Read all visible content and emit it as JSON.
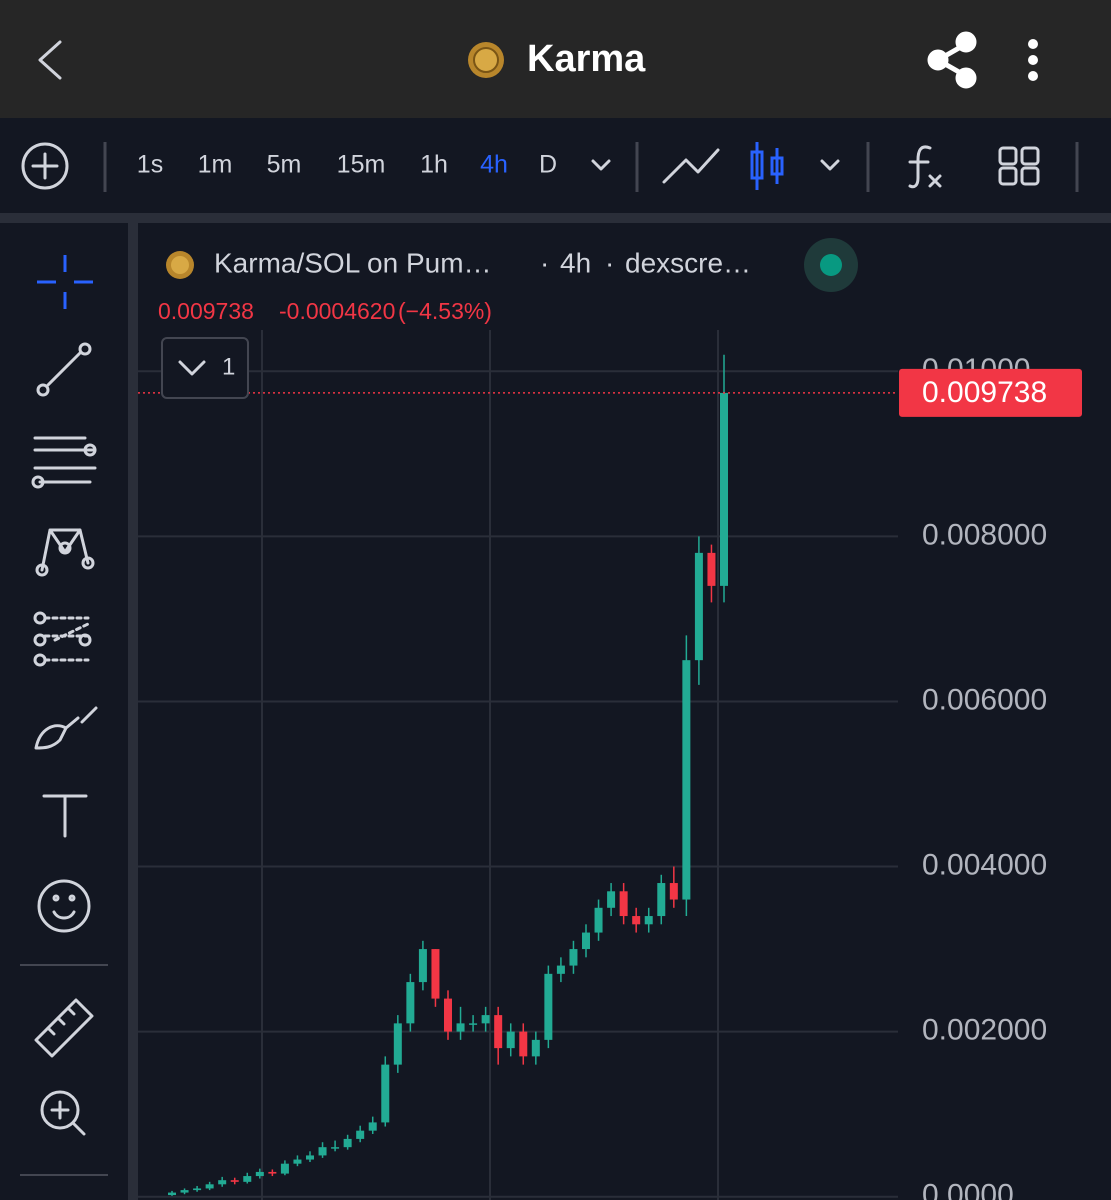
{
  "header": {
    "title": "Karma"
  },
  "toolbar": {
    "intervals": [
      "1s",
      "1m",
      "5m",
      "15m",
      "1h",
      "4h",
      "D"
    ],
    "active": "4h"
  },
  "chart_data": {
    "type": "candlestick",
    "symbol": "Karma/SOL on Pum…",
    "interval": "4h",
    "source": "dexscre…",
    "last_price": 0.009738,
    "price_change": {
      "value": -0.000462,
      "label": "-0.0004620"
    },
    "percent_change": {
      "value": -4.53,
      "label": "(−4.53%)"
    },
    "indicator_count": 1,
    "up_color": "#22ab94",
    "down_color": "#f23645",
    "categories": [
      null,
      null,
      null,
      null,
      null,
      null,
      null,
      null,
      null,
      null,
      null,
      null,
      null,
      null,
      null,
      null,
      null,
      null,
      null,
      null,
      null,
      null,
      null,
      null,
      null,
      null,
      null,
      null,
      null,
      null,
      null,
      null,
      null,
      null,
      null,
      null,
      null,
      null,
      null,
      null,
      null,
      null,
      null,
      null,
      null
    ],
    "open": [
      2e-05,
      5e-05,
      8e-05,
      0.0001,
      0.00015,
      0.0002,
      0.00018,
      0.00025,
      0.0003,
      0.00028,
      0.0004,
      0.00045,
      0.0005,
      0.0006,
      0.0006,
      0.0007,
      0.0008,
      0.0009,
      0.0016,
      0.0021,
      0.0026,
      0.003,
      0.0024,
      0.002,
      0.0021,
      0.0021,
      0.0022,
      0.0018,
      0.002,
      0.0017,
      0.0019,
      0.0027,
      0.0028,
      0.003,
      0.0032,
      0.0035,
      0.0037,
      0.0034,
      0.0033,
      0.0034,
      0.0038,
      0.0036,
      0.0065,
      0.0078,
      0.0074
    ],
    "high": [
      7e-05,
      0.0001,
      0.00013,
      0.00018,
      0.00024,
      0.00023,
      0.00029,
      0.00034,
      0.00033,
      0.00044,
      0.0005,
      0.00055,
      0.00066,
      0.00068,
      0.00075,
      0.00086,
      0.00097,
      0.0017,
      0.0022,
      0.0027,
      0.0031,
      0.003,
      0.0025,
      0.0023,
      0.0022,
      0.0023,
      0.0023,
      0.0021,
      0.0021,
      0.002,
      0.0028,
      0.0029,
      0.0031,
      0.0033,
      0.0036,
      0.0038,
      0.0038,
      0.0035,
      0.0035,
      0.0039,
      0.004,
      0.0068,
      0.008,
      0.0079,
      0.0102
    ],
    "low": [
      1e-05,
      3e-05,
      6e-05,
      8e-05,
      0.00012,
      0.00015,
      0.00016,
      0.00022,
      0.00025,
      0.00026,
      0.00037,
      0.00042,
      0.00047,
      0.00055,
      0.00057,
      0.00066,
      0.00076,
      0.00085,
      0.0015,
      0.002,
      0.0025,
      0.0023,
      0.0019,
      0.0019,
      0.002,
      0.002,
      0.0016,
      0.0017,
      0.0016,
      0.0016,
      0.0018,
      0.0026,
      0.0027,
      0.0029,
      0.0031,
      0.0034,
      0.0033,
      0.0032,
      0.0032,
      0.0033,
      0.0035,
      0.0034,
      0.0062,
      0.0072,
      0.0072
    ],
    "close": [
      5e-05,
      8e-05,
      0.0001,
      0.00015,
      0.0002,
      0.00018,
      0.00025,
      0.0003,
      0.00028,
      0.0004,
      0.00045,
      0.0005,
      0.0006,
      0.0006,
      0.0007,
      0.0008,
      0.0009,
      0.0016,
      0.0021,
      0.0026,
      0.003,
      0.0024,
      0.002,
      0.0021,
      0.0021,
      0.0022,
      0.0018,
      0.002,
      0.0017,
      0.0019,
      0.0027,
      0.0028,
      0.003,
      0.0032,
      0.0035,
      0.0037,
      0.0034,
      0.0033,
      0.0034,
      0.0038,
      0.0036,
      0.0065,
      0.0078,
      0.0074,
      0.009738
    ],
    "ylim": [
      -4e-05,
      0.0105
    ],
    "yticks": [
      {
        "value": 0,
        "label": "0.0000"
      },
      {
        "value": 0.002,
        "label": "0.002000"
      },
      {
        "value": 0.004,
        "label": "0.004000"
      },
      {
        "value": 0.006,
        "label": "0.006000"
      },
      {
        "value": 0.008,
        "label": "0.008000"
      },
      {
        "value": 0.01,
        "label": "0.01000"
      }
    ],
    "grid": true
  }
}
